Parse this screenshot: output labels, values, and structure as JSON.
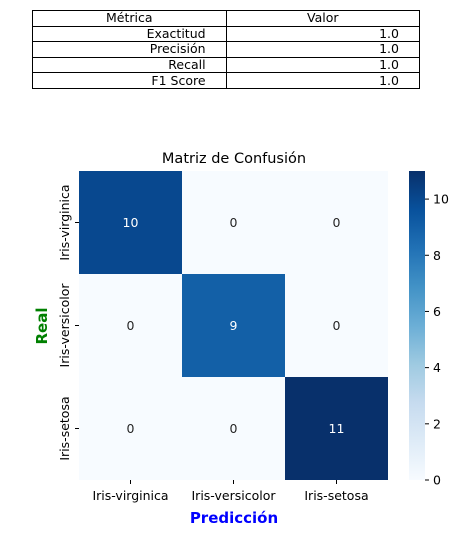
{
  "table": {
    "headers": [
      "Métrica",
      "Valor"
    ],
    "rows": [
      [
        "Exactitud",
        "1.0"
      ],
      [
        "Precisión",
        "1.0"
      ],
      [
        "Recall",
        "1.0"
      ],
      [
        "F1 Score",
        "1.0"
      ]
    ]
  },
  "chart_data": {
    "type": "heatmap",
    "title": "Matriz de Confusión",
    "xlabel": "Predicción",
    "ylabel": "Real",
    "xlabel_color": "#0000ff",
    "ylabel_color": "#008000",
    "x_categories": [
      "Iris-virginica",
      "Iris-versicolor",
      "Iris-setosa"
    ],
    "y_categories": [
      "Iris-virginica",
      "Iris-versicolor",
      "Iris-setosa"
    ],
    "values": [
      [
        10,
        0,
        0
      ],
      [
        0,
        9,
        0
      ],
      [
        0,
        0,
        11
      ]
    ],
    "colormap": "Blues",
    "vmin": 0,
    "vmax": 11,
    "colorbar_ticks": [
      0,
      2,
      4,
      6,
      8,
      10
    ],
    "annotations": true
  }
}
